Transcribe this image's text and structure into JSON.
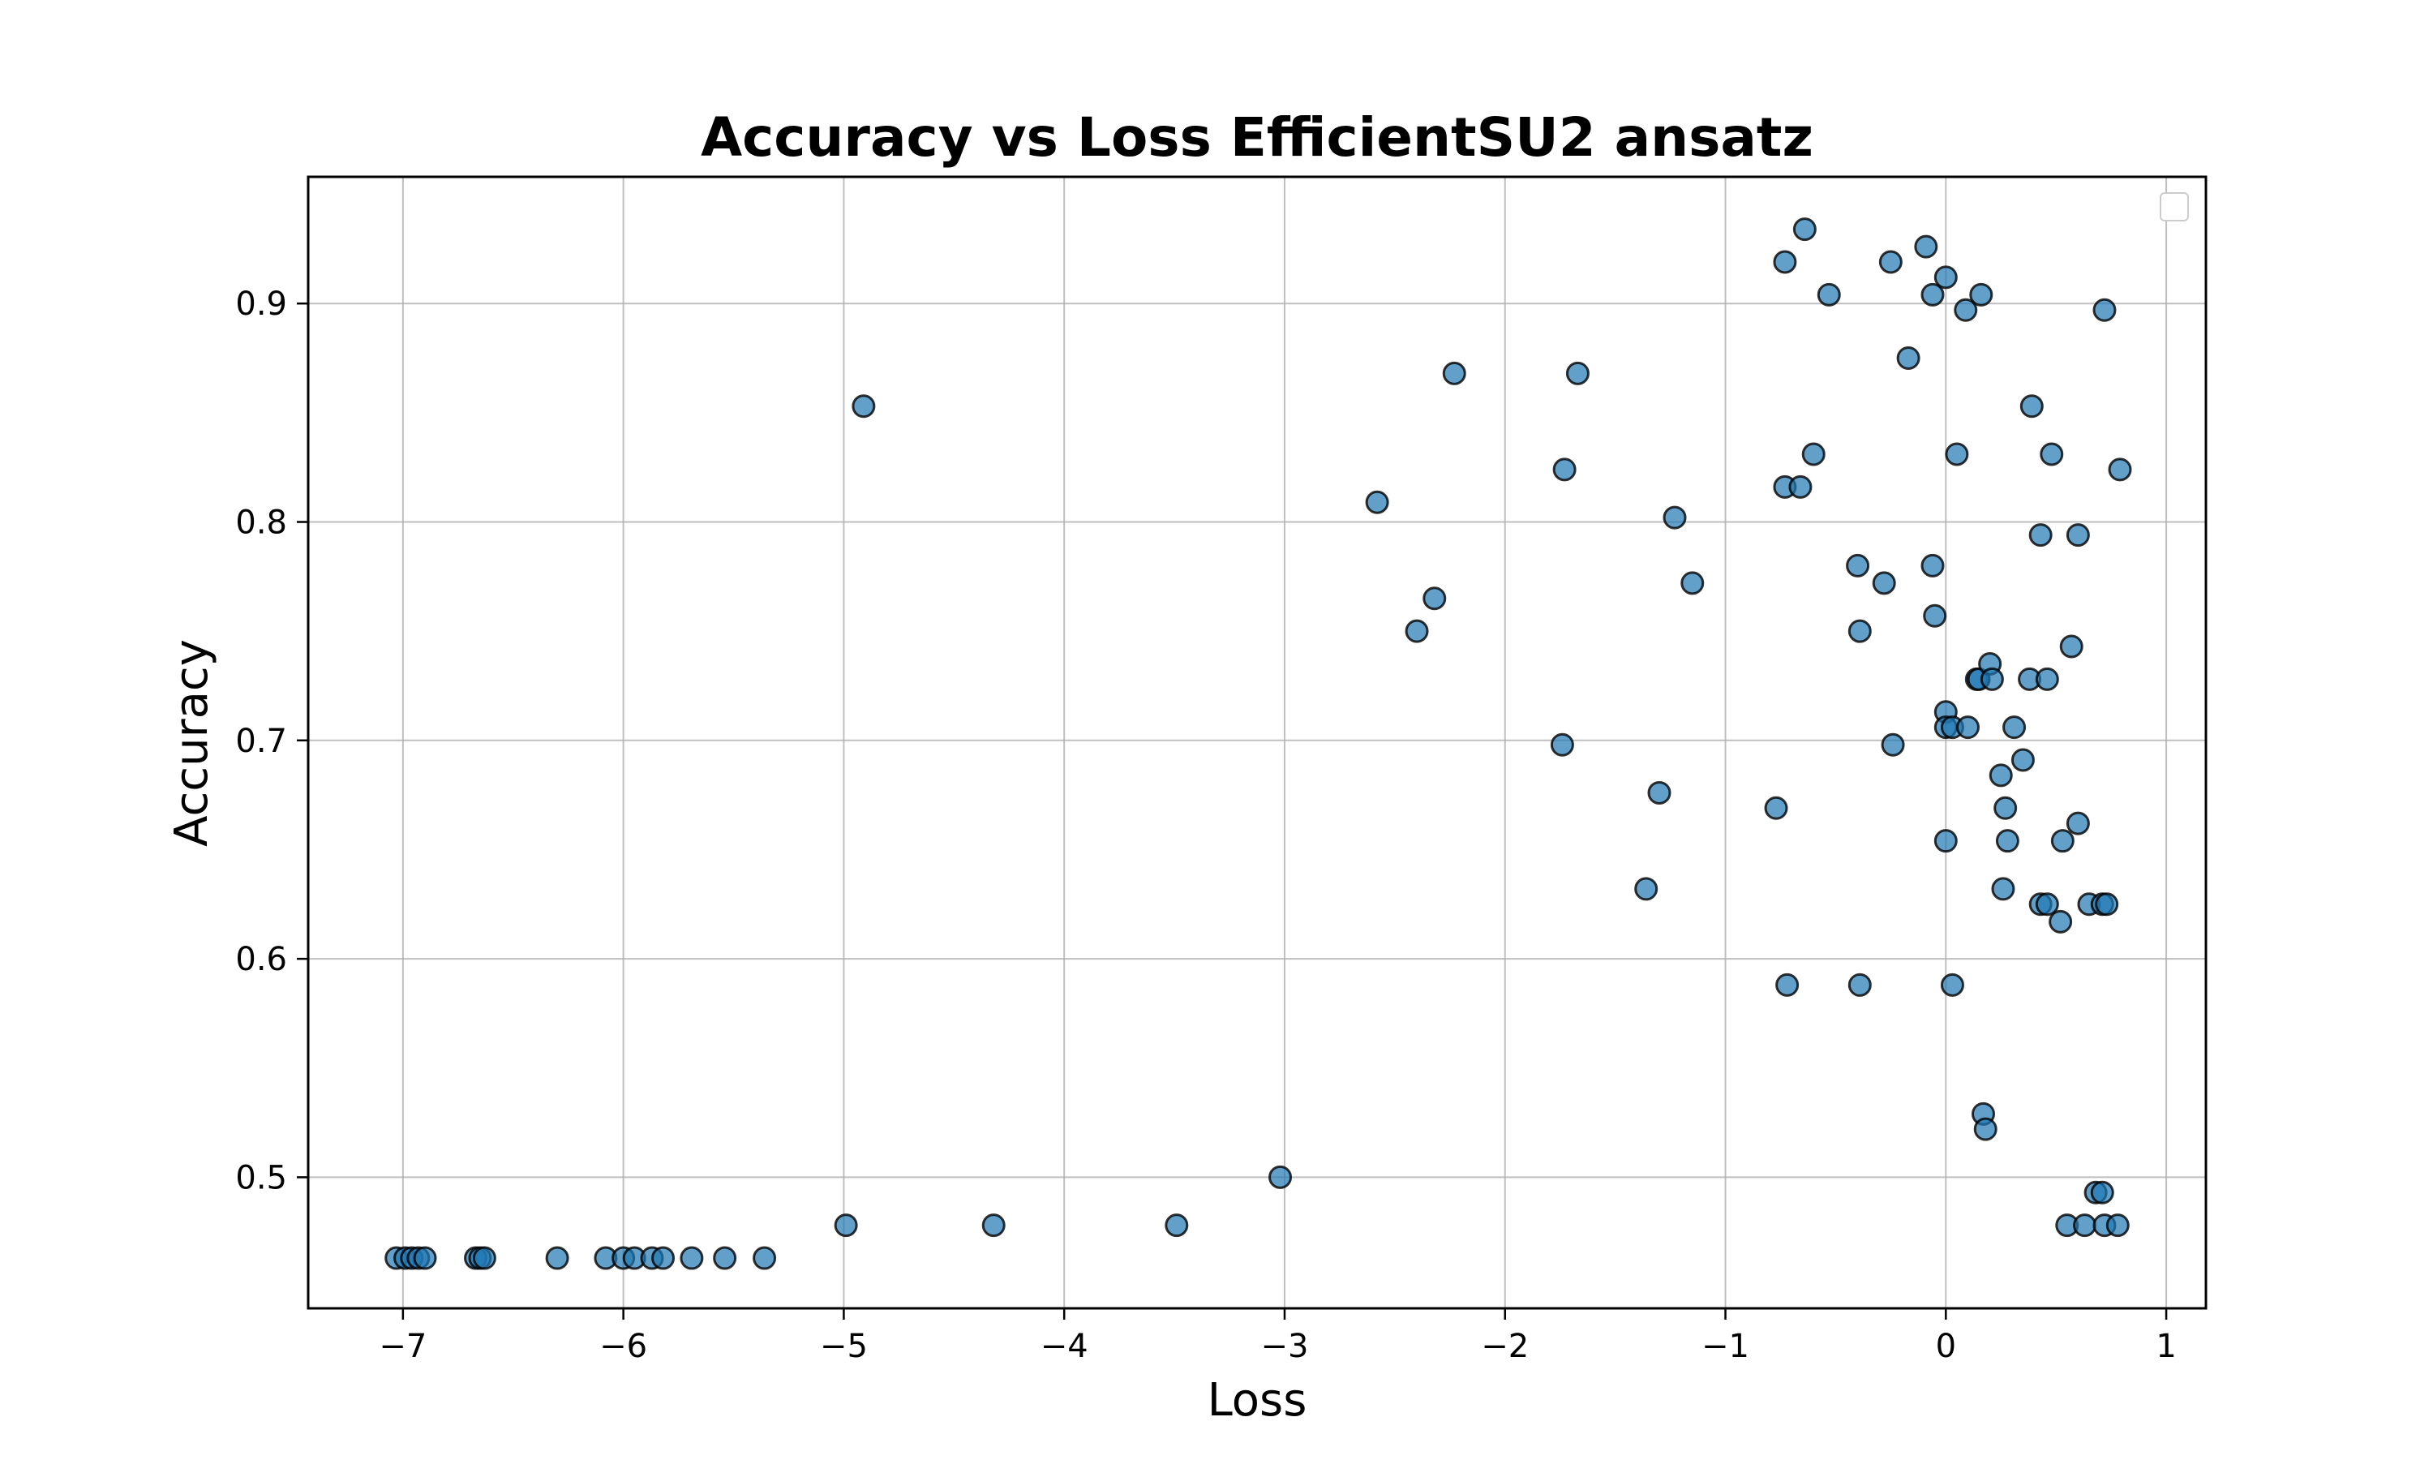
{
  "chart_data": {
    "type": "scatter",
    "title": "Accuracy vs Loss EfficientSU2 ansatz",
    "xlabel": "Loss",
    "ylabel": "Accuracy",
    "xlim": [
      -7.43,
      1.18
    ],
    "ylim": [
      0.44,
      0.958
    ],
    "xticks": [
      -7,
      -6,
      -5,
      -4,
      -3,
      -2,
      -1,
      0,
      1
    ],
    "xtick_labels": [
      "−7",
      "−6",
      "−5",
      "−4",
      "−3",
      "−2",
      "−1",
      "0",
      "1"
    ],
    "yticks": [
      0.5,
      0.6,
      0.7,
      0.8,
      0.9
    ],
    "ytick_labels": [
      "0.5",
      "0.6",
      "0.7",
      "0.8",
      "0.9"
    ],
    "grid": true,
    "legend": "upper-right (empty)",
    "point_color": "#1f77b4",
    "points": [
      [
        -7.03,
        0.463
      ],
      [
        -6.99,
        0.463
      ],
      [
        -6.96,
        0.463
      ],
      [
        -6.93,
        0.463
      ],
      [
        -6.9,
        0.463
      ],
      [
        -6.67,
        0.463
      ],
      [
        -6.65,
        0.463
      ],
      [
        -6.63,
        0.463
      ],
      [
        -6.3,
        0.463
      ],
      [
        -6.08,
        0.463
      ],
      [
        -6.0,
        0.463
      ],
      [
        -5.95,
        0.463
      ],
      [
        -5.87,
        0.463
      ],
      [
        -5.82,
        0.463
      ],
      [
        -5.69,
        0.463
      ],
      [
        -5.54,
        0.463
      ],
      [
        -5.36,
        0.463
      ],
      [
        -4.99,
        0.478
      ],
      [
        -4.32,
        0.478
      ],
      [
        -3.49,
        0.478
      ],
      [
        -3.02,
        0.5
      ],
      [
        -4.91,
        0.853
      ],
      [
        -2.58,
        0.809
      ],
      [
        -2.4,
        0.75
      ],
      [
        -2.32,
        0.765
      ],
      [
        -2.23,
        0.868
      ],
      [
        -1.74,
        0.698
      ],
      [
        -1.73,
        0.824
      ],
      [
        -1.67,
        0.868
      ],
      [
        -1.36,
        0.632
      ],
      [
        -1.3,
        0.676
      ],
      [
        -1.23,
        0.802
      ],
      [
        -1.15,
        0.772
      ],
      [
        -0.77,
        0.669
      ],
      [
        -0.73,
        0.919
      ],
      [
        -0.73,
        0.816
      ],
      [
        -0.72,
        0.588
      ],
      [
        -0.66,
        0.816
      ],
      [
        -0.64,
        0.934
      ],
      [
        -0.6,
        0.831
      ],
      [
        -0.53,
        0.904
      ],
      [
        -0.4,
        0.78
      ],
      [
        -0.39,
        0.75
      ],
      [
        -0.39,
        0.588
      ],
      [
        -0.28,
        0.772
      ],
      [
        -0.25,
        0.919
      ],
      [
        -0.24,
        0.698
      ],
      [
        -0.17,
        0.875
      ],
      [
        -0.09,
        0.926
      ],
      [
        -0.06,
        0.904
      ],
      [
        -0.06,
        0.78
      ],
      [
        -0.05,
        0.757
      ],
      [
        0.0,
        0.912
      ],
      [
        0.0,
        0.713
      ],
      [
        0.0,
        0.706
      ],
      [
        0.0,
        0.654
      ],
      [
        0.03,
        0.706
      ],
      [
        0.03,
        0.588
      ],
      [
        0.05,
        0.831
      ],
      [
        0.09,
        0.897
      ],
      [
        0.1,
        0.706
      ],
      [
        0.14,
        0.728
      ],
      [
        0.15,
        0.728
      ],
      [
        0.16,
        0.904
      ],
      [
        0.17,
        0.529
      ],
      [
        0.18,
        0.522
      ],
      [
        0.2,
        0.735
      ],
      [
        0.21,
        0.728
      ],
      [
        0.25,
        0.684
      ],
      [
        0.26,
        0.632
      ],
      [
        0.27,
        0.669
      ],
      [
        0.28,
        0.654
      ],
      [
        0.31,
        0.706
      ],
      [
        0.35,
        0.691
      ],
      [
        0.38,
        0.728
      ],
      [
        0.39,
        0.853
      ],
      [
        0.43,
        0.794
      ],
      [
        0.43,
        0.625
      ],
      [
        0.46,
        0.625
      ],
      [
        0.46,
        0.728
      ],
      [
        0.48,
        0.831
      ],
      [
        0.52,
        0.617
      ],
      [
        0.53,
        0.654
      ],
      [
        0.55,
        0.478
      ],
      [
        0.57,
        0.743
      ],
      [
        0.6,
        0.662
      ],
      [
        0.6,
        0.794
      ],
      [
        0.63,
        0.478
      ],
      [
        0.65,
        0.625
      ],
      [
        0.68,
        0.493
      ],
      [
        0.71,
        0.625
      ],
      [
        0.71,
        0.493
      ],
      [
        0.72,
        0.897
      ],
      [
        0.72,
        0.478
      ],
      [
        0.73,
        0.625
      ],
      [
        0.78,
        0.478
      ],
      [
        0.79,
        0.824
      ]
    ]
  }
}
